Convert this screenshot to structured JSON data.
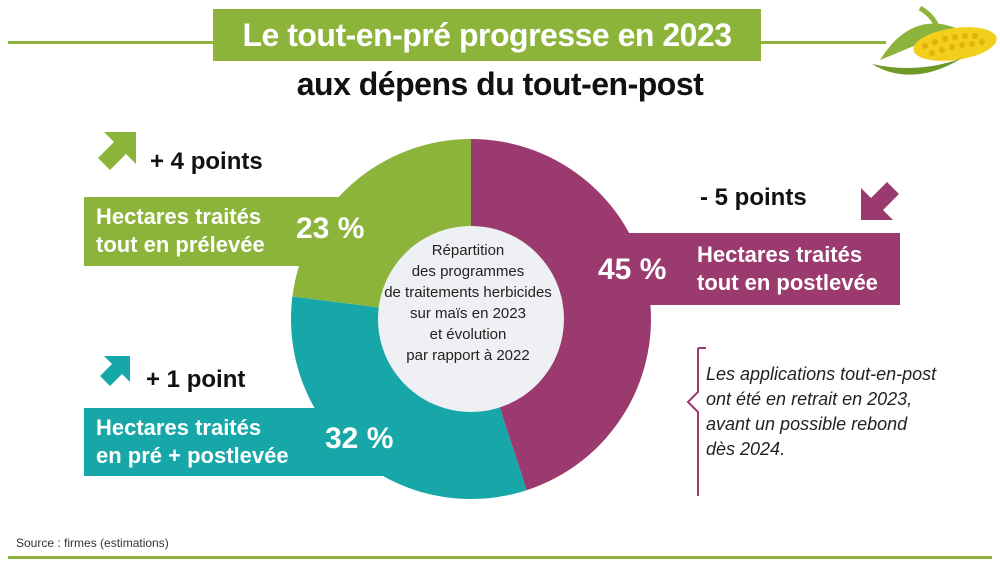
{
  "header": {
    "title": "Le tout-en-pré progresse en 2023",
    "subtitle": "aux dépens du tout-en-post"
  },
  "center_label": [
    "Répartition",
    "des programmes",
    "de traitements herbicides",
    "sur maïs en 2023",
    "et évolution",
    "par rapport à 2022"
  ],
  "note": [
    "Les applications tout-en-post",
    "ont été en retrait en 2023,",
    "avant un possible rebond",
    "dès 2024."
  ],
  "source": "Source : firmes (estimations)",
  "chart_data": {
    "type": "pie",
    "slices": [
      {
        "label_lines": [
          "Hectares traités",
          "tout en postlevée"
        ],
        "value": 45,
        "value_label": "45 %",
        "change": -5,
        "change_label": "- 5 points",
        "color": "#9b3a6e"
      },
      {
        "label_lines": [
          "Hectares traités",
          "en pré + postlevée"
        ],
        "value": 32,
        "value_label": "32 %",
        "change": 1,
        "change_label": "+ 1 point",
        "color": "#17a7a8"
      },
      {
        "label_lines": [
          "Hectares traités",
          "tout en prélevée"
        ],
        "value": 23,
        "value_label": "23 %",
        "change": 4,
        "change_label": "+ 4 points",
        "color": "#8cb43a"
      }
    ]
  },
  "colors": {
    "green": "#8cb43a",
    "teal": "#17a7a8",
    "purple": "#9b3a6e",
    "corn": "#f2cf1c"
  },
  "icons": [
    "corn-cob-icon",
    "arrow-up-right-icon",
    "arrow-down-right-icon"
  ]
}
